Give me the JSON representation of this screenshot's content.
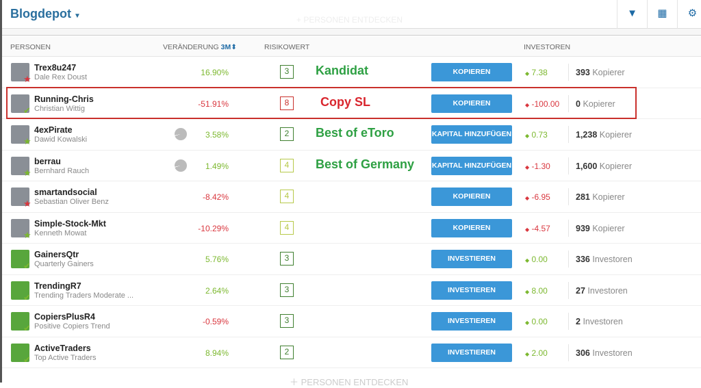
{
  "header": {
    "title": "Blogdepot",
    "ghost": "+ PERSONEN ENTDECKEN",
    "icons": [
      "filter-icon",
      "grid-icon",
      "gear-icon"
    ]
  },
  "columns": {
    "persons": "PERSONEN",
    "change": "VERÄNDERUNG",
    "period": "3M",
    "risk": "RISIKOWERT",
    "investors": "INVESTOREN"
  },
  "colors": {
    "accent": "#3b97d8",
    "positive": "#7cb82f",
    "negative": "#d9363e",
    "note": "#2ea043",
    "highlight": "#c9302c"
  },
  "rows": [
    {
      "user": "Trex8u247",
      "name": "Dale Rex Doust",
      "pie": false,
      "change": "16.90%",
      "pos": true,
      "risk": "3",
      "riskColor": "#3f7f2f",
      "note": "Kandidat",
      "noteColor": "#2ea043",
      "button": "KOPIEREN",
      "delta": "7.38",
      "dpos": true,
      "count": "393",
      "countLabel": "Kopierer",
      "badge": "star-red",
      "fund": false
    },
    {
      "user": "Running-Chris",
      "name": "Christian Wittig",
      "pie": false,
      "change": "-51.91%",
      "pos": false,
      "risk": "8",
      "riskColor": "#c9302c",
      "note": "Copy SL",
      "noteColor": "#d9262e",
      "button": "KOPIEREN",
      "delta": "-100.00",
      "dpos": false,
      "count": "0",
      "countLabel": "Kopierer",
      "badge": "check-green",
      "fund": false
    },
    {
      "user": "4exPirate",
      "name": "Dawid Kowalski",
      "pie": true,
      "change": "3.58%",
      "pos": true,
      "risk": "2",
      "riskColor": "#3f7f2f",
      "note": "Best of eToro",
      "noteColor": "#2ea043",
      "button": "KAPITAL HINZUFÜGEN",
      "delta": "0.73",
      "dpos": true,
      "count": "1,238",
      "countLabel": "Kopierer",
      "badge": "star-green",
      "fund": false
    },
    {
      "user": "berrau",
      "name": "Bernhard Rauch",
      "pie": true,
      "change": "1.49%",
      "pos": true,
      "risk": "4",
      "riskColor": "#b7c94a",
      "note": "Best of Germany",
      "noteColor": "#2ea043",
      "button": "KAPITAL HINZUFÜGEN",
      "delta": "-1.30",
      "dpos": false,
      "count": "1,600",
      "countLabel": "Kopierer",
      "badge": "star-green",
      "fund": false
    },
    {
      "user": "smartandsocial",
      "name": "Sebastian Oliver Benz",
      "pie": false,
      "change": "-8.42%",
      "pos": false,
      "risk": "4",
      "riskColor": "#b7c94a",
      "note": "",
      "button": "KOPIEREN",
      "delta": "-6.95",
      "dpos": false,
      "count": "281",
      "countLabel": "Kopierer",
      "badge": "star-red",
      "fund": false
    },
    {
      "user": "Simple-Stock-Mkt",
      "name": "Kenneth Mowat",
      "pie": false,
      "change": "-10.29%",
      "pos": false,
      "risk": "4",
      "riskColor": "#b7c94a",
      "note": "",
      "button": "KOPIEREN",
      "delta": "-4.57",
      "dpos": false,
      "count": "939",
      "countLabel": "Kopierer",
      "badge": "star-green",
      "fund": false
    },
    {
      "user": "GainersQtr",
      "name": "Quarterly Gainers",
      "pie": false,
      "change": "5.76%",
      "pos": true,
      "risk": "3",
      "riskColor": "#3f7f2f",
      "note": "",
      "button": "INVESTIEREN",
      "delta": "0.00",
      "dpos": true,
      "count": "336",
      "countLabel": "Investoren",
      "badge": "check-green",
      "fund": true
    },
    {
      "user": "TrendingR7",
      "name": "Trending Traders Moderate ...",
      "pie": false,
      "change": "2.64%",
      "pos": true,
      "risk": "3",
      "riskColor": "#3f7f2f",
      "note": "",
      "button": "INVESTIEREN",
      "delta": "8.00",
      "dpos": true,
      "count": "27",
      "countLabel": "Investoren",
      "badge": "check-green",
      "fund": true
    },
    {
      "user": "CopiersPlusR4",
      "name": "Positive Copiers Trend",
      "pie": false,
      "change": "-0.59%",
      "pos": false,
      "risk": "3",
      "riskColor": "#3f7f2f",
      "note": "",
      "button": "INVESTIEREN",
      "delta": "0.00",
      "dpos": true,
      "count": "2",
      "countLabel": "Investoren",
      "badge": "check-green",
      "fund": true
    },
    {
      "user": "ActiveTraders",
      "name": "Top Active Traders",
      "pie": false,
      "change": "8.94%",
      "pos": true,
      "risk": "2",
      "riskColor": "#3f7f2f",
      "note": "",
      "button": "INVESTIEREN",
      "delta": "2.00",
      "dpos": true,
      "count": "306",
      "countLabel": "Investoren",
      "badge": "check-green",
      "fund": true
    }
  ],
  "footer": {
    "discover": "PERSONEN ENTDECKEN"
  }
}
